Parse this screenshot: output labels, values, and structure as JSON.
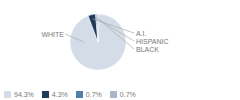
{
  "chart_data": {
    "type": "pie",
    "categories": [
      "WHITE",
      "A.I.",
      "HISPANIC",
      "BLACK"
    ],
    "values": [
      94.3,
      4.3,
      0.7,
      0.7
    ],
    "value_labels": [
      "94.3%",
      "4.3%",
      "0.7%",
      "0.7%"
    ],
    "colors": [
      "#d4dce8",
      "#1e3a56",
      "#5080a8",
      "#a8b8c8"
    ],
    "legend": "lower left"
  }
}
